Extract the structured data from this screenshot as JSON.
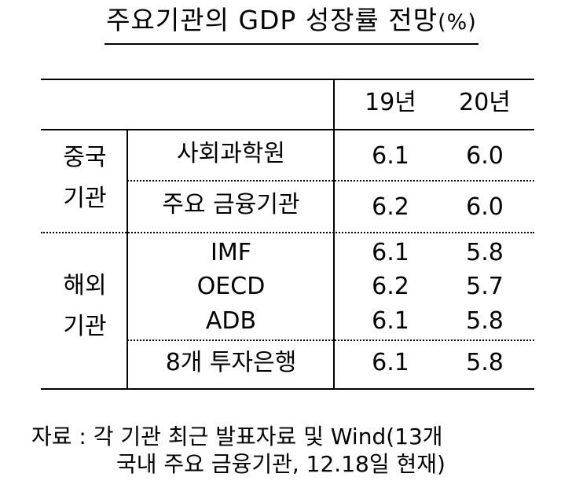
{
  "title": {
    "main": "주요기관의 GDP 성장률 전망",
    "unit": "(%)"
  },
  "table": {
    "headers": {
      "y19": "19년",
      "y20": "20년"
    },
    "groups": {
      "china": {
        "line1": "중국",
        "line2": "기관"
      },
      "overseas": {
        "line1": "해외",
        "line2": "기관"
      }
    },
    "rows": [
      {
        "label": "사회과학원",
        "y19": "6.1",
        "y20": "6.0"
      },
      {
        "label": "주요 금융기관",
        "y19": "6.2",
        "y20": "6.0"
      },
      {
        "label": "IMF",
        "y19": "6.1",
        "y20": "5.8"
      },
      {
        "label": "OECD",
        "y19": "6.2",
        "y20": "5.7"
      },
      {
        "label": "ADB",
        "y19": "6.1",
        "y20": "5.8"
      },
      {
        "label": "8개 투자은행",
        "y19": "6.1",
        "y20": "5.8"
      }
    ]
  },
  "source": {
    "line1": "자료 : 각 기관 최근 발표자료 및 Wind(13개",
    "line2": "국내 주요 금융기관, 12.18일 현재)"
  }
}
